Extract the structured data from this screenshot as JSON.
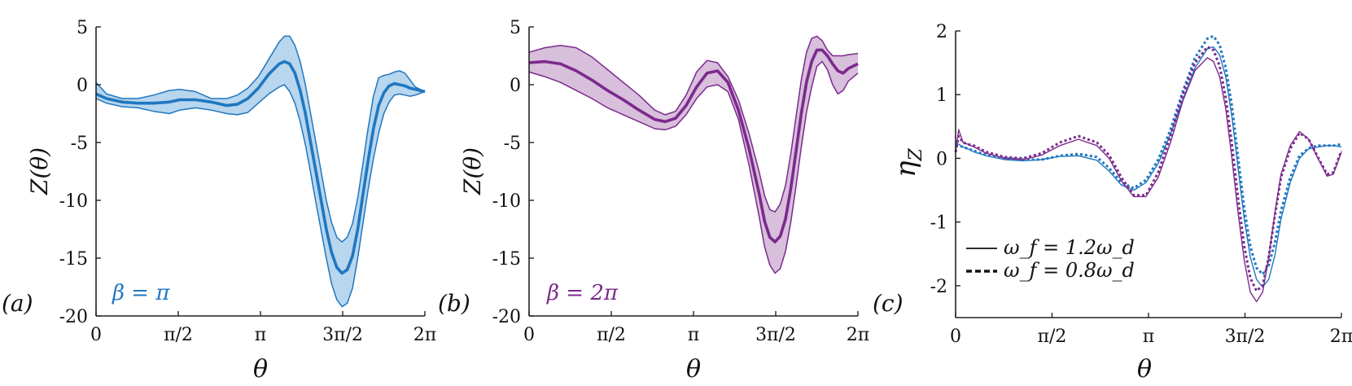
{
  "colors": {
    "blue": "#1f77c0",
    "blue_fill": "#b8d6ee",
    "purple": "#7b2a8c",
    "purple_fill": "#d8bfdc",
    "axis": "#222222"
  },
  "chart_data": [
    {
      "type": "area",
      "panel_label": "(a)",
      "annotation": "β = π",
      "xlabel": "θ",
      "ylabel": "Z(θ)",
      "xlim": [
        0,
        6.2832
      ],
      "ylim": [
        -20,
        5
      ],
      "x_ticks": [
        0,
        1.5708,
        3.1416,
        4.7124,
        6.2832
      ],
      "x_tick_labels": [
        "0",
        "π/2",
        "π",
        "3π/2",
        "2π"
      ],
      "y_ticks": [
        5,
        0,
        -5,
        -10,
        -15,
        -20
      ],
      "y_tick_labels": [
        "5",
        "0",
        "-5",
        "-10",
        "-15",
        "-20"
      ],
      "x": [
        0,
        0.2,
        0.5,
        0.8,
        1.1,
        1.4,
        1.6,
        1.9,
        2.2,
        2.5,
        2.7,
        2.9,
        3.1,
        3.3,
        3.5,
        3.6,
        3.7,
        3.8,
        3.9,
        4.0,
        4.1,
        4.2,
        4.3,
        4.4,
        4.5,
        4.6,
        4.7,
        4.8,
        4.9,
        5.0,
        5.1,
        5.2,
        5.3,
        5.4,
        5.5,
        5.6,
        5.7,
        5.8,
        5.9,
        6.0,
        6.1,
        6.2832
      ],
      "series": [
        {
          "role": "mean",
          "values": [
            -0.8,
            -1.2,
            -1.5,
            -1.6,
            -1.6,
            -1.5,
            -1.3,
            -1.3,
            -1.5,
            -1.8,
            -1.7,
            -1.2,
            -0.3,
            0.9,
            1.8,
            2.0,
            1.8,
            1.0,
            -0.5,
            -2.5,
            -5.0,
            -7.5,
            -10.0,
            -12.5,
            -14.5,
            -15.8,
            -16.3,
            -16.0,
            -14.8,
            -12.5,
            -9.5,
            -6.5,
            -3.8,
            -1.8,
            -0.7,
            -0.1,
            0.1,
            0.0,
            -0.1,
            -0.3,
            -0.4,
            -0.6
          ]
        },
        {
          "role": "upper",
          "values": [
            0.2,
            -0.8,
            -1.2,
            -1.2,
            -0.9,
            -0.5,
            -0.4,
            -0.6,
            -1.2,
            -1.2,
            -0.9,
            -0.3,
            0.7,
            2.2,
            3.7,
            4.2,
            4.2,
            3.4,
            2.0,
            0.0,
            -2.5,
            -5.0,
            -7.5,
            -10.0,
            -11.9,
            -13.2,
            -13.6,
            -13.2,
            -12.0,
            -9.8,
            -6.8,
            -3.7,
            -1.0,
            0.6,
            0.8,
            0.9,
            1.1,
            1.2,
            1.0,
            0.4,
            -0.2,
            -0.6
          ]
        },
        {
          "role": "lower",
          "values": [
            -1.2,
            -1.6,
            -1.9,
            -2.0,
            -2.3,
            -2.5,
            -2.2,
            -2.0,
            -2.2,
            -2.5,
            -2.6,
            -2.4,
            -1.6,
            -0.8,
            -0.2,
            0.0,
            -0.6,
            -1.6,
            -3.2,
            -5.2,
            -7.6,
            -10.2,
            -12.6,
            -15.0,
            -17.2,
            -18.6,
            -19.2,
            -18.9,
            -17.6,
            -15.0,
            -12.0,
            -9.0,
            -6.4,
            -4.2,
            -2.5,
            -1.5,
            -0.9,
            -0.8,
            -0.9,
            -1.0,
            -0.9,
            -0.6
          ]
        }
      ]
    },
    {
      "type": "area",
      "panel_label": "(b)",
      "annotation": "β = 2π",
      "xlabel": "θ",
      "ylabel": "Z(θ)",
      "xlim": [
        0,
        6.2832
      ],
      "ylim": [
        -20,
        5
      ],
      "x_ticks": [
        0,
        1.5708,
        3.1416,
        4.7124,
        6.2832
      ],
      "x_tick_labels": [
        "0",
        "π/2",
        "π",
        "3π/2",
        "2π"
      ],
      "y_ticks": [
        5,
        0,
        -5,
        -10,
        -15,
        -20
      ],
      "y_tick_labels": [
        "5",
        "0",
        "-5",
        "-10",
        "-15",
        "-20"
      ],
      "x": [
        0,
        0.3,
        0.6,
        0.9,
        1.2,
        1.5,
        1.8,
        2.1,
        2.4,
        2.6,
        2.8,
        3.0,
        3.2,
        3.4,
        3.6,
        3.8,
        4.0,
        4.2,
        4.4,
        4.5,
        4.6,
        4.7,
        4.8,
        4.9,
        5.0,
        5.1,
        5.2,
        5.3,
        5.4,
        5.5,
        5.6,
        5.7,
        5.8,
        5.9,
        6.0,
        6.1,
        6.2832
      ],
      "series": [
        {
          "role": "mean",
          "values": [
            1.9,
            2.0,
            1.8,
            1.2,
            0.4,
            -0.5,
            -1.3,
            -2.2,
            -3.0,
            -3.2,
            -2.9,
            -1.8,
            -0.2,
            1.0,
            1.2,
            0.2,
            -2.2,
            -5.5,
            -9.5,
            -11.8,
            -13.2,
            -13.6,
            -13.1,
            -11.6,
            -9.0,
            -5.8,
            -2.5,
            0.2,
            2.0,
            3.0,
            3.0,
            2.5,
            1.8,
            1.2,
            1.0,
            1.4,
            1.8
          ]
        },
        {
          "role": "upper",
          "values": [
            2.8,
            3.2,
            3.4,
            3.2,
            2.4,
            1.3,
            0.2,
            -0.9,
            -2.2,
            -2.6,
            -2.3,
            -0.9,
            1.1,
            2.1,
            1.9,
            0.7,
            -1.3,
            -4.2,
            -7.6,
            -9.6,
            -10.8,
            -11.0,
            -10.3,
            -8.7,
            -6.0,
            -2.8,
            0.4,
            2.8,
            4.0,
            4.2,
            3.8,
            3.0,
            2.5,
            2.5,
            2.5,
            2.6,
            2.7
          ]
        },
        {
          "role": "lower",
          "values": [
            1.1,
            0.7,
            0.2,
            -0.5,
            -1.2,
            -2.0,
            -2.6,
            -3.2,
            -3.8,
            -3.9,
            -3.6,
            -2.6,
            -1.2,
            -0.2,
            0.0,
            -0.6,
            -3.0,
            -6.9,
            -11.5,
            -14.0,
            -15.6,
            -16.3,
            -15.9,
            -14.4,
            -11.9,
            -8.8,
            -5.4,
            -2.4,
            -0.2,
            1.6,
            2.0,
            1.3,
            0.0,
            -0.8,
            -0.5,
            0.3,
            1.0
          ]
        }
      ]
    },
    {
      "type": "line",
      "panel_label": "(c)",
      "xlabel": "θ",
      "ylabel": "η_Z",
      "xlim": [
        0,
        6.2832
      ],
      "ylim": [
        -2.5,
        2
      ],
      "x_ticks": [
        0,
        1.5708,
        3.1416,
        4.7124,
        6.2832
      ],
      "x_tick_labels": [
        "0",
        "π/2",
        "π",
        "3π/2",
        "2π"
      ],
      "y_ticks": [
        2,
        1,
        0,
        -1,
        -2
      ],
      "y_tick_labels": [
        "2",
        "1",
        "0",
        "-1",
        "-2"
      ],
      "legend": [
        {
          "label": "ω_f = 1.2ω_d",
          "style": "solid"
        },
        {
          "label": "ω_f = 0.8ω_d",
          "style": "dashed"
        }
      ],
      "legend_placement": "bottom-left",
      "x": [
        0,
        0.05,
        0.12,
        0.2,
        0.3,
        0.5,
        0.8,
        1.1,
        1.4,
        1.7,
        2.0,
        2.3,
        2.5,
        2.7,
        2.9,
        3.1,
        3.3,
        3.5,
        3.7,
        3.9,
        4.1,
        4.2,
        4.3,
        4.4,
        4.5,
        4.6,
        4.7,
        4.8,
        4.9,
        5.0,
        5.1,
        5.2,
        5.3,
        5.45,
        5.6,
        5.75,
        5.9,
        6.05,
        6.15,
        6.2832
      ],
      "series": [
        {
          "name": "blue-solid",
          "color": "blue",
          "style": "solid",
          "width": 1.4,
          "values": [
            0.25,
            0.22,
            0.18,
            0.15,
            0.1,
            0.04,
            -0.02,
            -0.04,
            -0.02,
            0.03,
            0.04,
            -0.03,
            -0.2,
            -0.42,
            -0.5,
            -0.38,
            -0.08,
            0.38,
            0.92,
            1.42,
            1.72,
            1.75,
            1.62,
            1.28,
            0.65,
            -0.15,
            -0.95,
            -1.55,
            -1.9,
            -2.02,
            -1.9,
            -1.52,
            -0.95,
            -0.38,
            0.0,
            0.15,
            0.18,
            0.2,
            0.2,
            0.18
          ]
        },
        {
          "name": "blue-dashed",
          "color": "blue",
          "style": "dotted",
          "width": 3.0,
          "values": [
            0.2,
            0.2,
            0.18,
            0.15,
            0.12,
            0.05,
            0.0,
            -0.02,
            -0.02,
            0.04,
            0.07,
            0.02,
            -0.15,
            -0.38,
            -0.47,
            -0.34,
            -0.02,
            0.45,
            1.05,
            1.58,
            1.88,
            1.92,
            1.78,
            1.42,
            0.82,
            0.02,
            -0.78,
            -1.38,
            -1.72,
            -1.82,
            -1.68,
            -1.32,
            -0.82,
            -0.3,
            0.04,
            0.16,
            0.2,
            0.2,
            0.2,
            0.22
          ]
        },
        {
          "name": "purple-solid",
          "color": "purple",
          "style": "solid",
          "width": 1.4,
          "values": [
            0.1,
            0.45,
            0.25,
            0.22,
            0.18,
            0.08,
            0.0,
            -0.02,
            0.05,
            0.2,
            0.3,
            0.2,
            0.0,
            -0.35,
            -0.6,
            -0.6,
            -0.3,
            0.25,
            0.9,
            1.38,
            1.58,
            1.52,
            1.28,
            0.78,
            0.0,
            -0.85,
            -1.6,
            -2.1,
            -2.25,
            -2.1,
            -1.55,
            -0.85,
            -0.25,
            0.2,
            0.42,
            0.3,
            0.0,
            -0.28,
            -0.25,
            0.1
          ]
        },
        {
          "name": "purple-dashed",
          "color": "purple",
          "style": "dotted",
          "width": 3.0,
          "values": [
            0.1,
            0.35,
            0.25,
            0.22,
            0.2,
            0.1,
            0.02,
            0.0,
            0.08,
            0.25,
            0.35,
            0.25,
            0.05,
            -0.3,
            -0.58,
            -0.58,
            -0.22,
            0.35,
            1.0,
            1.5,
            1.75,
            1.7,
            1.45,
            0.95,
            0.22,
            -0.62,
            -1.38,
            -1.88,
            -2.08,
            -2.0,
            -1.55,
            -0.9,
            -0.3,
            0.15,
            0.4,
            0.3,
            0.02,
            -0.25,
            -0.22,
            0.12
          ]
        }
      ]
    }
  ]
}
